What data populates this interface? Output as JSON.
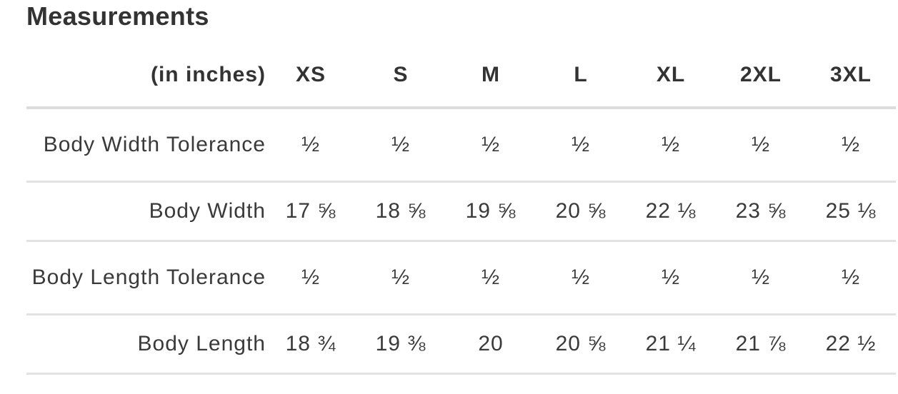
{
  "title": "Measurements",
  "table": {
    "unit_header": "(in inches)",
    "sizes": [
      "XS",
      "S",
      "M",
      "L",
      "XL",
      "2XL",
      "3XL"
    ],
    "rows": [
      {
        "label": "Body Width Tolerance",
        "values": [
          "½",
          "½",
          "½",
          "½",
          "½",
          "½",
          "½"
        ]
      },
      {
        "label": "Body Width",
        "values": [
          "17 ⅝",
          "18 ⅝",
          "19 ⅝",
          "20 ⅝",
          "22 ⅛",
          "23 ⅝",
          "25 ⅛"
        ]
      },
      {
        "label": "Body Length Tolerance",
        "values": [
          "½",
          "½",
          "½",
          "½",
          "½",
          "½",
          "½"
        ]
      },
      {
        "label": "Body Length",
        "values": [
          "18 ¾",
          "19 ⅜",
          "20",
          "20 ⅝",
          "21 ¼",
          "21 ⅞",
          "22 ½"
        ]
      }
    ]
  }
}
